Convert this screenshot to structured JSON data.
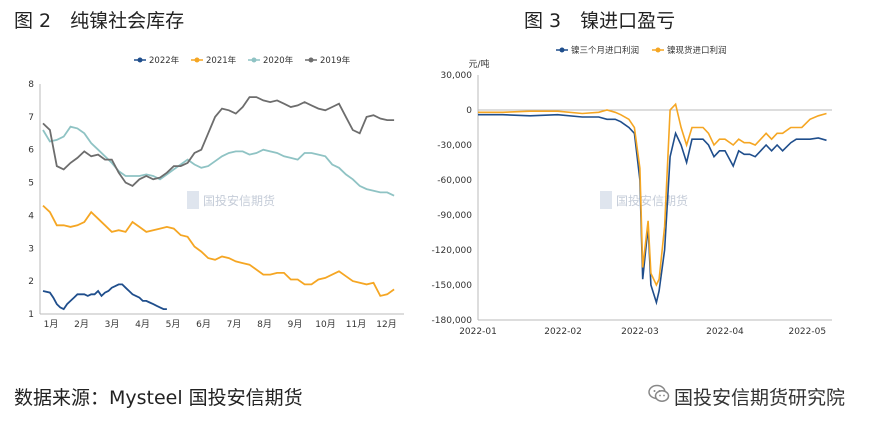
{
  "figure2_title": "图 2　纯镍社会库存",
  "figure3_title": "图 3　镍进口盈亏",
  "source_text": "数据来源：Mysteel  国投安信期货",
  "brand_text": "国投安信期货研究院",
  "watermark_text": "国投安信期货",
  "chart_data": [
    {
      "type": "line",
      "ylim": [
        1,
        8
      ],
      "yticks": [
        1,
        2,
        3,
        4,
        5,
        6,
        7,
        8
      ],
      "x_labels": [
        "1月",
        "2月",
        "3月",
        "4月",
        "5月",
        "6月",
        "7月",
        "8月",
        "9月",
        "10月",
        "11月",
        "12月"
      ],
      "legend_position": "top",
      "series": [
        {
          "name": "2022年",
          "color": "#1f4e8c",
          "x": [
            0,
            1,
            1.5,
            2,
            2.5,
            3,
            3.5,
            4,
            4.5,
            5,
            5.5,
            6,
            6.5,
            7,
            7.5,
            8,
            8.5,
            9,
            9.5,
            10,
            10.5,
            11,
            11.5,
            12,
            12.5,
            13,
            13.5,
            14,
            14.5,
            15,
            15.5,
            16,
            16.5,
            17,
            17.5,
            18
          ],
          "y": [
            1.7,
            1.65,
            1.5,
            1.3,
            1.2,
            1.15,
            1.3,
            1.4,
            1.5,
            1.6,
            1.6,
            1.6,
            1.55,
            1.6,
            1.6,
            1.7,
            1.55,
            1.65,
            1.7,
            1.8,
            1.85,
            1.9,
            1.9,
            1.8,
            1.7,
            1.6,
            1.55,
            1.5,
            1.4,
            1.4,
            1.35,
            1.3,
            1.25,
            1.2,
            1.15,
            1.15
          ]
        },
        {
          "name": "2021年",
          "color": "#f5a623",
          "x": [
            0,
            1,
            2,
            3,
            4,
            5,
            6,
            7,
            8,
            9,
            10,
            11,
            12,
            13,
            14,
            15,
            16,
            17,
            18,
            19,
            20,
            21,
            22,
            23,
            24,
            25,
            26,
            27,
            28,
            29,
            30,
            31,
            32,
            33,
            34,
            35,
            36,
            37,
            38,
            39,
            40,
            41,
            42,
            43,
            44,
            45,
            46,
            47,
            48,
            49,
            50,
            51
          ],
          "y": [
            4.3,
            4.1,
            3.7,
            3.7,
            3.65,
            3.7,
            3.8,
            4.1,
            3.9,
            3.7,
            3.5,
            3.55,
            3.5,
            3.8,
            3.65,
            3.5,
            3.55,
            3.6,
            3.65,
            3.6,
            3.4,
            3.35,
            3.05,
            2.9,
            2.7,
            2.65,
            2.75,
            2.7,
            2.6,
            2.55,
            2.5,
            2.35,
            2.2,
            2.2,
            2.25,
            2.25,
            2.05,
            2.05,
            1.9,
            1.9,
            2.05,
            2.1,
            2.2,
            2.3,
            2.15,
            2.0,
            1.95,
            1.9,
            1.95,
            1.55,
            1.6,
            1.75
          ]
        },
        {
          "name": "2020年",
          "color": "#8fc3c4",
          "x": [
            0,
            1,
            2,
            3,
            4,
            5,
            6,
            7,
            8,
            9,
            10,
            11,
            12,
            13,
            14,
            15,
            16,
            17,
            18,
            19,
            20,
            21,
            22,
            23,
            24,
            25,
            26,
            27,
            28,
            29,
            30,
            31,
            32,
            33,
            34,
            35,
            36,
            37,
            38,
            39,
            40,
            41,
            42,
            43,
            44,
            45,
            46,
            47,
            48,
            49,
            50,
            51
          ],
          "y": [
            6.6,
            6.25,
            6.3,
            6.4,
            6.7,
            6.65,
            6.5,
            6.2,
            6.0,
            5.8,
            5.6,
            5.35,
            5.2,
            5.2,
            5.2,
            5.25,
            5.2,
            5.1,
            5.25,
            5.4,
            5.55,
            5.7,
            5.55,
            5.45,
            5.5,
            5.65,
            5.8,
            5.9,
            5.95,
            5.95,
            5.85,
            5.9,
            6.0,
            5.95,
            5.9,
            5.8,
            5.75,
            5.7,
            5.9,
            5.9,
            5.85,
            5.8,
            5.55,
            5.45,
            5.25,
            5.1,
            4.9,
            4.8,
            4.75,
            4.7,
            4.7,
            4.6
          ]
        },
        {
          "name": "2019年",
          "color": "#6d6d6d",
          "x": [
            0,
            1,
            2,
            3,
            4,
            5,
            6,
            7,
            8,
            9,
            10,
            11,
            12,
            13,
            14,
            15,
            16,
            17,
            18,
            19,
            20,
            21,
            22,
            23,
            24,
            25,
            26,
            27,
            28,
            29,
            30,
            31,
            32,
            33,
            34,
            35,
            36,
            37,
            38,
            39,
            40,
            41,
            42,
            43,
            44,
            45,
            46,
            47,
            48,
            49,
            50,
            51
          ],
          "y": [
            6.8,
            6.6,
            5.5,
            5.4,
            5.6,
            5.75,
            5.95,
            5.8,
            5.85,
            5.7,
            5.7,
            5.3,
            5.0,
            4.9,
            5.1,
            5.2,
            5.1,
            5.15,
            5.3,
            5.5,
            5.5,
            5.6,
            5.9,
            6.0,
            6.5,
            7.0,
            7.25,
            7.2,
            7.1,
            7.3,
            7.6,
            7.6,
            7.5,
            7.45,
            7.5,
            7.4,
            7.3,
            7.35,
            7.45,
            7.35,
            7.25,
            7.2,
            7.3,
            7.4,
            7.0,
            6.6,
            6.5,
            7.0,
            7.05,
            6.95,
            6.9,
            6.9
          ]
        }
      ]
    },
    {
      "type": "line",
      "ylabel": "元/吨",
      "ylim": [
        -180000,
        30000
      ],
      "yticks": [
        30000,
        0,
        -30000,
        -60000,
        -90000,
        -120000,
        -150000,
        -180000
      ],
      "ytick_labels": [
        "30,000",
        "0",
        "-30,000",
        "-60,000",
        "-90,000",
        "-120,000",
        "-150,000",
        "-180,000"
      ],
      "xlim": [
        "2022-01-01",
        "2022-05-10"
      ],
      "x_labels": [
        "2022-01",
        "2022-02",
        "2022-03",
        "2022-04",
        "2022-05"
      ],
      "x_label_dates": [
        "2022-01-01",
        "2022-02-01",
        "2022-03-01",
        "2022-04-01",
        "2022-05-01"
      ],
      "legend_position": "top",
      "series": [
        {
          "name": "镍三个月进口利润",
          "color": "#1f4e8c",
          "x": [
            "2022-01-01",
            "2022-01-10",
            "2022-01-20",
            "2022-01-30",
            "2022-02-08",
            "2022-02-14",
            "2022-02-17",
            "2022-02-20",
            "2022-02-22",
            "2022-02-25",
            "2022-02-27",
            "2022-03-01",
            "2022-03-02",
            "2022-03-04",
            "2022-03-05",
            "2022-03-07",
            "2022-03-08",
            "2022-03-10",
            "2022-03-12",
            "2022-03-14",
            "2022-03-16",
            "2022-03-18",
            "2022-03-20",
            "2022-03-22",
            "2022-03-24",
            "2022-03-26",
            "2022-03-28",
            "2022-03-30",
            "2022-04-01",
            "2022-04-04",
            "2022-04-06",
            "2022-04-08",
            "2022-04-10",
            "2022-04-12",
            "2022-04-14",
            "2022-04-16",
            "2022-04-18",
            "2022-04-20",
            "2022-04-22",
            "2022-04-25",
            "2022-04-27",
            "2022-04-29",
            "2022-05-02",
            "2022-05-05",
            "2022-05-08"
          ],
          "y": [
            -4000,
            -4000,
            -5000,
            -4000,
            -6000,
            -6000,
            -8000,
            -8000,
            -10000,
            -15000,
            -20000,
            -60000,
            -145000,
            -100000,
            -150000,
            -165000,
            -155000,
            -120000,
            -40000,
            -20000,
            -30000,
            -45000,
            -25000,
            -25000,
            -25000,
            -30000,
            -40000,
            -35000,
            -35000,
            -48000,
            -35000,
            -38000,
            -38000,
            -40000,
            -35000,
            -30000,
            -35000,
            -30000,
            -35000,
            -28000,
            -25000,
            -25000,
            -25000,
            -24000,
            -26000
          ]
        },
        {
          "name": "镍现货进口利润",
          "color": "#f5a623",
          "x": [
            "2022-01-01",
            "2022-01-10",
            "2022-01-20",
            "2022-01-30",
            "2022-02-08",
            "2022-02-14",
            "2022-02-17",
            "2022-02-20",
            "2022-02-22",
            "2022-02-25",
            "2022-02-27",
            "2022-03-01",
            "2022-03-02",
            "2022-03-04",
            "2022-03-05",
            "2022-03-07",
            "2022-03-08",
            "2022-03-10",
            "2022-03-12",
            "2022-03-14",
            "2022-03-16",
            "2022-03-18",
            "2022-03-20",
            "2022-03-22",
            "2022-03-24",
            "2022-03-26",
            "2022-03-28",
            "2022-03-30",
            "2022-04-01",
            "2022-04-04",
            "2022-04-06",
            "2022-04-08",
            "2022-04-10",
            "2022-04-12",
            "2022-04-14",
            "2022-04-16",
            "2022-04-18",
            "2022-04-20",
            "2022-04-22",
            "2022-04-25",
            "2022-04-27",
            "2022-04-29",
            "2022-05-02",
            "2022-05-05",
            "2022-05-08"
          ],
          "y": [
            -2000,
            -2000,
            -1000,
            -1000,
            -3000,
            -2000,
            0,
            -2000,
            -4000,
            -8000,
            -15000,
            -50000,
            -135000,
            -95000,
            -140000,
            -150000,
            -145000,
            -100000,
            0,
            5000,
            -15000,
            -30000,
            -15000,
            -15000,
            -15000,
            -20000,
            -30000,
            -25000,
            -25000,
            -30000,
            -25000,
            -28000,
            -28000,
            -30000,
            -25000,
            -20000,
            -25000,
            -20000,
            -20000,
            -15000,
            -15000,
            -15000,
            -8000,
            -5000,
            -3000
          ]
        }
      ]
    }
  ]
}
